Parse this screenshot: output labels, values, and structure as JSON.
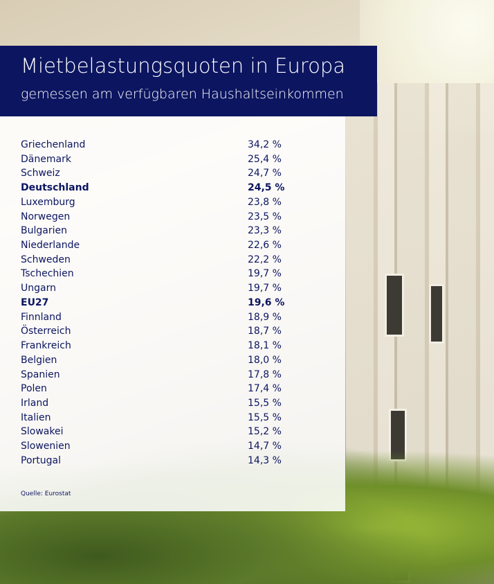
{
  "header": {
    "title": "Mietbelastungsquoten in Europa",
    "subtitle": "gemessen am verfügbaren Haushaltseinkommen"
  },
  "table": {
    "rows": [
      {
        "country": "Griechenland",
        "value": "34,2 %"
      },
      {
        "country": "Dänemark",
        "value": "25,4 %"
      },
      {
        "country": "Schweiz",
        "value": "24,7 %"
      },
      {
        "country": "Deutschland",
        "value": "24,5 %",
        "bold": true
      },
      {
        "country": "Luxemburg",
        "value": "23,8 %"
      },
      {
        "country": "Norwegen",
        "value": "23,5 %"
      },
      {
        "country": "Bulgarien",
        "value": "23,3 %"
      },
      {
        "country": "Niederlande",
        "value": "22,6 %"
      },
      {
        "country": "Schweden",
        "value": "22,2 %"
      },
      {
        "country": "Tschechien",
        "value": "19,7 %"
      },
      {
        "country": "Ungarn",
        "value": "19,7 %"
      },
      {
        "country": "EU27",
        "value": "19,6 %",
        "bold": true
      },
      {
        "country": "Finnland",
        "value": "18,9 %"
      },
      {
        "country": "Österreich",
        "value": "18,7 %"
      },
      {
        "country": "Frankreich",
        "value": "18,1 %"
      },
      {
        "country": "Belgien",
        "value": "18,0 %"
      },
      {
        "country": "Spanien",
        "value": "17,8 %"
      },
      {
        "country": "Polen",
        "value": "17,4 %"
      },
      {
        "country": "Irland",
        "value": "15,5 %"
      },
      {
        "country": "Italien",
        "value": "15,5 %"
      },
      {
        "country": "Slowakei",
        "value": "15,2 %"
      },
      {
        "country": "Slowenien",
        "value": "14,7 %"
      },
      {
        "country": "Portugal",
        "value": "14,3 %"
      }
    ]
  },
  "source": "Quelle: Eurostat"
}
